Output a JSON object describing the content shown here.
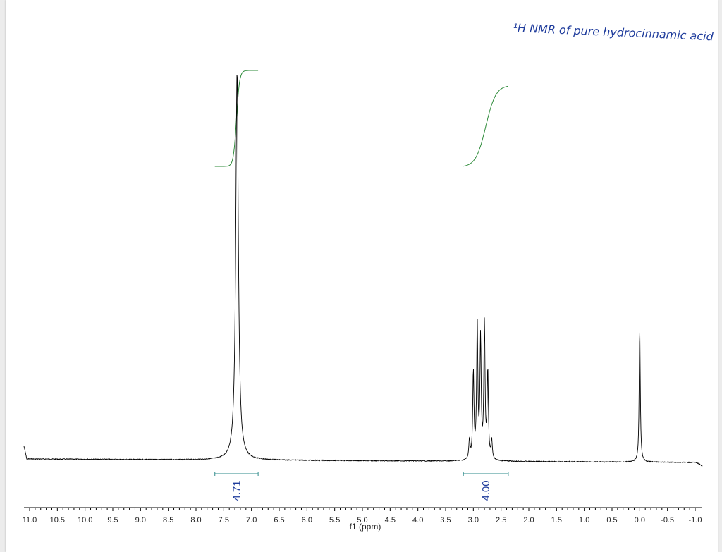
{
  "annotation": "¹H NMR of pure hydrocinnamic acid",
  "chart_data": {
    "type": "line",
    "title": "",
    "xlabel": "f1 (ppm)",
    "ylabel": "",
    "xlim": [
      11.0,
      -1.0
    ],
    "x_reversed": true,
    "grid": false,
    "x_ticks": [
      "11.0",
      "10.5",
      "10.0",
      "9.5",
      "9.0",
      "8.5",
      "8.0",
      "7.5",
      "7.0",
      "6.5",
      "6.0",
      "5.5",
      "5.0",
      "4.5",
      "4.0",
      "3.5",
      "3.0",
      "2.5",
      "2.0",
      "1.5",
      "1.0",
      "0.5",
      "0.0",
      "-0.5",
      "-1.0"
    ],
    "peaks": [
      {
        "ppm": 7.26,
        "height": 0.98
      },
      {
        "ppm": 3.07,
        "height": 0.05
      },
      {
        "ppm": 3.0,
        "height": 0.22
      },
      {
        "ppm": 2.93,
        "height": 0.34
      },
      {
        "ppm": 2.87,
        "height": 0.3
      },
      {
        "ppm": 2.8,
        "height": 0.34
      },
      {
        "ppm": 2.74,
        "height": 0.22
      },
      {
        "ppm": 2.67,
        "height": 0.05
      },
      {
        "ppm": 0.0,
        "height": 0.34
      }
    ],
    "integrals": [
      {
        "from": 7.66,
        "to": 6.88,
        "value": "4.71"
      },
      {
        "from": 3.18,
        "to": 2.37,
        "value": "4.00"
      }
    ],
    "colors": {
      "spectrum": "#000000",
      "integral": "#2e8b3a",
      "label": "#1f3c9c"
    }
  }
}
